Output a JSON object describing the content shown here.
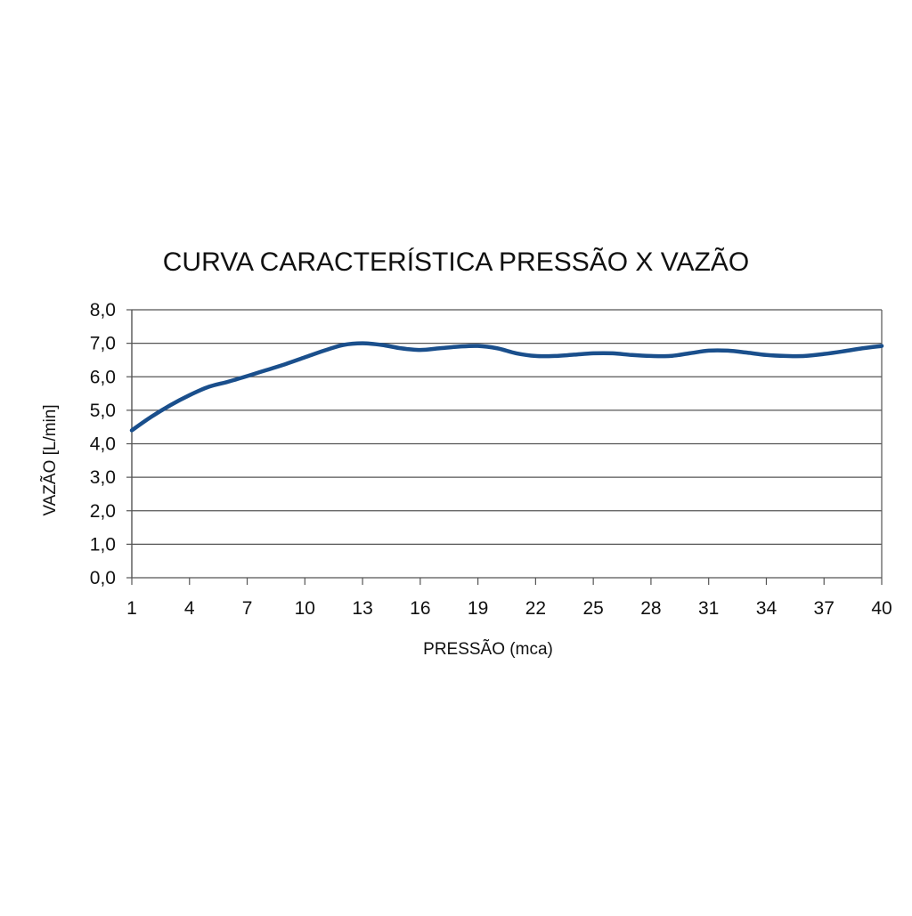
{
  "chart_data": {
    "type": "line",
    "title": "CURVA CARACTERÍSTICA PRESSÃO X VAZÃO",
    "xlabel": "PRESSÃO (mca)",
    "ylabel": "VAZÃO [L/min]",
    "x": [
      1,
      2,
      3,
      4,
      5,
      6,
      7,
      8,
      9,
      10,
      11,
      12,
      13,
      14,
      15,
      16,
      17,
      18,
      19,
      20,
      21,
      22,
      23,
      24,
      25,
      26,
      27,
      28,
      29,
      30,
      31,
      32,
      33,
      34,
      35,
      36,
      37,
      38,
      39,
      40
    ],
    "x_tick_labels": [
      "1",
      "4",
      "7",
      "10",
      "13",
      "16",
      "19",
      "22",
      "25",
      "28",
      "31",
      "34",
      "37",
      "40"
    ],
    "x_tick_values": [
      1,
      4,
      7,
      10,
      13,
      16,
      19,
      22,
      25,
      28,
      31,
      34,
      37,
      40
    ],
    "y_tick_labels": [
      "0,0",
      "1,0",
      "2,0",
      "3,0",
      "4,0",
      "5,0",
      "6,0",
      "7,0",
      "8,0"
    ],
    "ylim": [
      0,
      8
    ],
    "xlim": [
      1,
      40
    ],
    "grid": "horizontal",
    "legend": "none",
    "series": [
      {
        "values": [
          4.4,
          4.8,
          5.15,
          5.45,
          5.7,
          5.85,
          6.02,
          6.2,
          6.38,
          6.58,
          6.78,
          6.95,
          7.0,
          6.95,
          6.85,
          6.8,
          6.85,
          6.9,
          6.92,
          6.85,
          6.7,
          6.62,
          6.62,
          6.66,
          6.7,
          6.7,
          6.65,
          6.62,
          6.62,
          6.7,
          6.78,
          6.78,
          6.72,
          6.65,
          6.62,
          6.62,
          6.68,
          6.76,
          6.85,
          6.92
        ],
        "color": "#1a4f8c"
      }
    ],
    "colors": {
      "line": "#1a4f8c",
      "grid": "#555555",
      "axis": "#555555"
    }
  }
}
